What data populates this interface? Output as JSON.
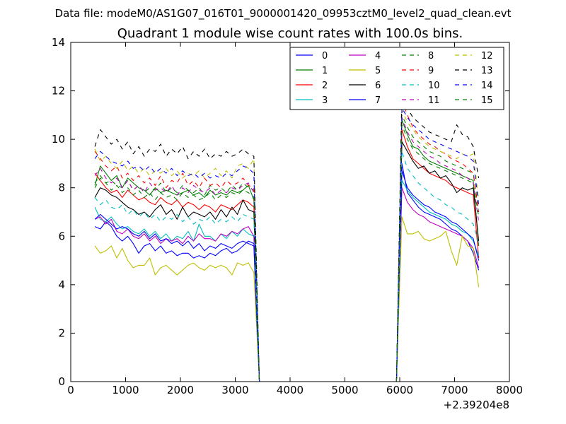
{
  "header": {
    "data_file": "Data file: modeM0/AS1G07_016T01_9000001420_09953cztM0_level2_quad_clean.evt"
  },
  "chart_data": {
    "type": "line",
    "title": "Quadrant 1 module wise count rates with 100.0s bins.",
    "xlabel": "",
    "ylabel": "",
    "x_offset_label": "+2.39204e8",
    "xlim": [
      0,
      8000
    ],
    "ylim": [
      0,
      14
    ],
    "xticks": [
      0,
      1000,
      2000,
      3000,
      4000,
      5000,
      6000,
      7000,
      8000
    ],
    "yticks": [
      0,
      2,
      4,
      6,
      8,
      10,
      12,
      14
    ],
    "grid": false,
    "legend_location": "upper right",
    "x": [
      440,
      540,
      640,
      740,
      840,
      940,
      1040,
      1140,
      1240,
      1340,
      1440,
      1540,
      1640,
      1740,
      1840,
      1940,
      2040,
      2140,
      2240,
      2340,
      2440,
      2540,
      2640,
      2740,
      2840,
      2940,
      3040,
      3140,
      3240,
      3340,
      3440,
      5840,
      5940,
      6040,
      6140,
      6240,
      6340,
      6440,
      6540,
      6640,
      6740,
      6840,
      6940,
      7040,
      7140,
      7240,
      7340,
      7440
    ],
    "series": [
      {
        "name": "0",
        "color": "#0000ff",
        "dash": "solid",
        "values": [
          6.4,
          6.3,
          6.6,
          6.4,
          6.0,
          5.8,
          6.0,
          5.7,
          5.3,
          5.6,
          5.7,
          5.4,
          5.6,
          5.3,
          5.4,
          5.2,
          5.3,
          5.3,
          5.1,
          5.2,
          5.1,
          5.3,
          5.2,
          5.4,
          5.5,
          5.3,
          5.4,
          5.6,
          5.8,
          5.7,
          0.0,
          0.0,
          0.0,
          9.0,
          7.8,
          7.5,
          7.2,
          7.0,
          6.9,
          6.8,
          6.7,
          6.5,
          6.3,
          6.2,
          6.0,
          5.8,
          5.3,
          4.6
        ]
      },
      {
        "name": "1",
        "color": "#008000",
        "dash": "solid",
        "values": [
          8.1,
          8.9,
          8.6,
          8.3,
          8.5,
          8.0,
          8.4,
          8.2,
          8.0,
          7.9,
          7.7,
          8.0,
          7.8,
          7.9,
          7.8,
          7.7,
          7.8,
          7.9,
          7.7,
          7.8,
          7.6,
          7.9,
          7.7,
          7.8,
          7.7,
          7.9,
          7.8,
          7.9,
          8.1,
          7.5,
          0.0,
          0.0,
          0.0,
          10.8,
          10.2,
          9.7,
          9.6,
          9.3,
          9.1,
          9.0,
          8.9,
          8.8,
          8.7,
          8.6,
          8.5,
          8.4,
          8.3,
          5.6
        ]
      },
      {
        "name": "2",
        "color": "#ff0000",
        "dash": "solid",
        "values": [
          8.6,
          8.3,
          8.0,
          7.8,
          7.9,
          7.6,
          7.9,
          7.7,
          7.5,
          7.6,
          7.4,
          7.3,
          7.6,
          7.4,
          7.3,
          7.5,
          7.2,
          7.4,
          7.3,
          7.1,
          7.3,
          7.2,
          7.0,
          7.3,
          7.2,
          7.1,
          7.3,
          7.5,
          7.4,
          7.2,
          0.0,
          0.0,
          0.0,
          10.4,
          9.7,
          9.2,
          9.0,
          8.8,
          8.6,
          8.5,
          8.4,
          8.3,
          8.1,
          8.0,
          7.9,
          7.8,
          7.7,
          5.1
        ]
      },
      {
        "name": "3",
        "color": "#00bfbf",
        "dash": "solid",
        "values": [
          7.2,
          6.7,
          6.6,
          6.8,
          6.5,
          6.3,
          6.4,
          6.2,
          6.1,
          6.3,
          6.0,
          6.2,
          5.9,
          6.1,
          5.8,
          6.0,
          5.9,
          6.2,
          5.8,
          6.5,
          6.0,
          6.0,
          5.8,
          6.1,
          5.9,
          6.2,
          6.0,
          6.3,
          6.1,
          6.0,
          0.0,
          0.0,
          0.0,
          8.3,
          7.9,
          7.6,
          7.4,
          7.2,
          7.0,
          6.9,
          6.8,
          6.7,
          6.5,
          6.4,
          6.2,
          6.1,
          5.8,
          5.2
        ]
      },
      {
        "name": "4",
        "color": "#bf00bf",
        "dash": "solid",
        "values": [
          6.7,
          6.8,
          6.5,
          6.7,
          6.2,
          6.1,
          6.3,
          6.0,
          5.9,
          6.1,
          5.8,
          6.0,
          5.7,
          5.9,
          5.8,
          5.9,
          5.7,
          6.0,
          5.8,
          6.1,
          5.9,
          5.9,
          5.8,
          6.1,
          6.0,
          6.2,
          6.1,
          6.3,
          6.4,
          6.0,
          0.0,
          0.0,
          0.0,
          8.0,
          7.4,
          7.1,
          6.9,
          6.8,
          6.6,
          6.5,
          6.4,
          6.3,
          6.2,
          6.1,
          6.0,
          5.8,
          5.5,
          4.7
        ]
      },
      {
        "name": "5",
        "color": "#bfbf00",
        "dash": "solid",
        "values": [
          5.6,
          5.3,
          5.4,
          5.6,
          5.1,
          5.5,
          5.0,
          4.7,
          4.8,
          4.8,
          5.1,
          4.4,
          4.7,
          4.8,
          4.6,
          4.4,
          4.6,
          4.8,
          4.9,
          4.7,
          4.6,
          4.8,
          4.7,
          4.8,
          4.7,
          4.4,
          4.9,
          4.8,
          4.9,
          4.5,
          0.0,
          0.0,
          0.0,
          6.8,
          6.1,
          6.1,
          6.2,
          5.9,
          5.8,
          5.9,
          6.0,
          6.2,
          5.4,
          4.8,
          6.0,
          5.6,
          5.5,
          3.9
        ]
      },
      {
        "name": "6",
        "color": "#000000",
        "dash": "solid",
        "values": [
          7.6,
          8.0,
          7.9,
          7.7,
          7.6,
          7.4,
          7.2,
          7.1,
          6.9,
          7.0,
          6.8,
          7.1,
          7.3,
          6.9,
          7.1,
          6.7,
          7.2,
          6.8,
          7.0,
          6.9,
          6.8,
          7.0,
          6.7,
          7.1,
          6.8,
          7.2,
          6.9,
          7.5,
          7.1,
          7.0,
          0.0,
          0.0,
          0.0,
          9.9,
          9.5,
          9.1,
          8.8,
          8.9,
          8.6,
          8.7,
          8.4,
          8.5,
          8.2,
          7.8,
          8.0,
          7.9,
          8.0,
          5.8
        ]
      },
      {
        "name": "7",
        "color": "#0000ff",
        "dash": "solid",
        "values": [
          6.7,
          6.9,
          6.7,
          6.5,
          6.3,
          6.4,
          6.3,
          6.1,
          6.0,
          6.2,
          5.9,
          6.1,
          5.8,
          5.9,
          5.7,
          5.8,
          5.6,
          5.8,
          5.5,
          5.7,
          5.4,
          5.6,
          5.5,
          5.7,
          5.6,
          5.5,
          5.7,
          5.8,
          5.7,
          5.6,
          0.0,
          0.0,
          0.0,
          8.7,
          8.0,
          7.7,
          7.5,
          7.3,
          7.2,
          7.0,
          6.9,
          6.8,
          6.6,
          6.5,
          6.3,
          6.1,
          5.9,
          5.0
        ]
      },
      {
        "name": "8",
        "color": "#008000",
        "dash": "dashed",
        "values": [
          8.2,
          8.5,
          8.2,
          8.3,
          8.1,
          8.0,
          8.3,
          7.9,
          8.1,
          7.8,
          8.0,
          7.9,
          8.2,
          7.8,
          8.0,
          7.8,
          8.1,
          7.9,
          7.8,
          8.0,
          7.7,
          8.1,
          7.9,
          8.0,
          7.8,
          8.1,
          7.9,
          8.2,
          8.0,
          7.9,
          0.0,
          0.0,
          0.0,
          11.0,
          10.5,
          10.1,
          9.9,
          9.7,
          9.5,
          9.4,
          9.3,
          9.1,
          9.0,
          8.9,
          8.8,
          8.7,
          8.6,
          7.1
        ]
      },
      {
        "name": "9",
        "color": "#ff0000",
        "dash": "dashed",
        "values": [
          9.5,
          9.2,
          8.9,
          8.7,
          8.9,
          8.4,
          8.6,
          8.3,
          8.5,
          8.2,
          8.4,
          8.1,
          8.5,
          8.0,
          8.3,
          8.2,
          8.6,
          8.1,
          8.3,
          8.0,
          8.4,
          8.1,
          8.2,
          8.0,
          8.3,
          8.1,
          8.2,
          8.4,
          8.1,
          8.0,
          0.0,
          0.0,
          0.0,
          11.6,
          11.0,
          10.5,
          10.2,
          10.0,
          9.8,
          9.7,
          9.5,
          9.4,
          9.2,
          9.1,
          9.0,
          8.8,
          8.6,
          7.0
        ]
      },
      {
        "name": "10",
        "color": "#00bfbf",
        "dash": "dashed",
        "values": [
          7.6,
          7.3,
          7.5,
          7.2,
          7.1,
          7.3,
          6.9,
          7.1,
          6.8,
          7.0,
          6.7,
          6.9,
          6.6,
          6.8,
          6.7,
          6.9,
          6.6,
          6.8,
          6.5,
          6.7,
          6.6,
          6.8,
          6.5,
          6.7,
          6.6,
          6.8,
          6.6,
          6.9,
          6.8,
          6.7,
          0.0,
          0.0,
          0.0,
          9.5,
          8.8,
          8.5,
          8.2,
          8.0,
          7.8,
          7.6,
          7.5,
          7.3,
          7.2,
          7.0,
          6.9,
          6.7,
          6.5,
          5.7
        ]
      },
      {
        "name": "11",
        "color": "#bf00bf",
        "dash": "dashed",
        "values": [
          8.5,
          8.8,
          8.4,
          8.2,
          8.4,
          8.0,
          8.3,
          7.9,
          8.1,
          7.8,
          8.2,
          7.9,
          8.0,
          7.8,
          8.1,
          7.7,
          8.0,
          7.8,
          8.1,
          7.9,
          7.8,
          8.0,
          7.7,
          7.9,
          7.8,
          8.0,
          7.9,
          8.1,
          8.2,
          7.8,
          0.0,
          0.0,
          0.0,
          10.9,
          10.3,
          9.9,
          9.7,
          9.5,
          9.3,
          9.2,
          9.0,
          8.9,
          8.8,
          8.7,
          8.5,
          8.4,
          8.2,
          6.6
        ]
      },
      {
        "name": "12",
        "color": "#bfbf00",
        "dash": "dashed",
        "values": [
          9.6,
          9.1,
          9.3,
          9.0,
          8.8,
          9.1,
          8.7,
          8.9,
          8.6,
          8.8,
          8.5,
          8.7,
          8.6,
          8.8,
          8.5,
          8.7,
          8.4,
          8.6,
          8.5,
          8.7,
          8.4,
          8.6,
          8.8,
          8.5,
          8.7,
          8.4,
          8.9,
          9.0,
          8.8,
          9.2,
          0.0,
          0.0,
          0.0,
          11.2,
          10.7,
          10.4,
          10.1,
          9.9,
          9.7,
          9.6,
          9.5,
          9.4,
          9.3,
          9.2,
          9.4,
          9.3,
          9.4,
          7.5
        ]
      },
      {
        "name": "13",
        "color": "#000000",
        "dash": "dashed",
        "values": [
          9.7,
          10.4,
          10.1,
          9.8,
          10.0,
          9.6,
          9.9,
          9.4,
          9.7,
          9.3,
          9.6,
          9.5,
          9.8,
          9.3,
          9.6,
          9.4,
          9.7,
          9.2,
          9.5,
          9.3,
          9.6,
          9.2,
          9.4,
          9.3,
          9.5,
          9.3,
          9.4,
          9.6,
          9.4,
          9.3,
          0.0,
          0.0,
          0.0,
          12.0,
          11.3,
          10.9,
          10.7,
          10.5,
          10.3,
          10.2,
          10.1,
          10.0,
          9.9,
          10.6,
          10.2,
          10.1,
          9.7,
          8.4
        ]
      },
      {
        "name": "14",
        "color": "#0000ff",
        "dash": "dashed",
        "values": [
          9.2,
          9.5,
          9.3,
          9.1,
          9.0,
          8.9,
          9.1,
          8.8,
          8.9,
          8.7,
          8.9,
          8.6,
          8.8,
          8.6,
          8.8,
          8.5,
          8.7,
          8.5,
          8.6,
          8.4,
          8.6,
          8.4,
          8.5,
          8.4,
          8.6,
          8.5,
          8.7,
          8.9,
          8.8,
          8.6,
          0.0,
          0.0,
          0.0,
          11.3,
          10.9,
          10.6,
          10.4,
          10.2,
          10.0,
          9.9,
          9.8,
          9.7,
          9.6,
          9.5,
          9.4,
          9.3,
          9.1,
          7.3
        ]
      },
      {
        "name": "15",
        "color": "#008000",
        "dash": "dashed",
        "values": [
          8.0,
          8.4,
          8.2,
          7.9,
          8.1,
          7.8,
          8.0,
          7.7,
          7.9,
          7.6,
          7.8,
          7.5,
          7.8,
          7.6,
          7.7,
          7.5,
          7.8,
          7.6,
          7.7,
          7.5,
          7.6,
          7.8,
          7.5,
          7.7,
          7.6,
          7.8,
          7.7,
          7.9,
          7.8,
          7.6,
          0.0,
          0.0,
          0.0,
          10.6,
          10.0,
          9.6,
          9.4,
          9.2,
          9.0,
          8.9,
          8.8,
          8.7,
          8.6,
          8.5,
          8.4,
          8.3,
          8.2,
          6.8
        ]
      }
    ]
  }
}
